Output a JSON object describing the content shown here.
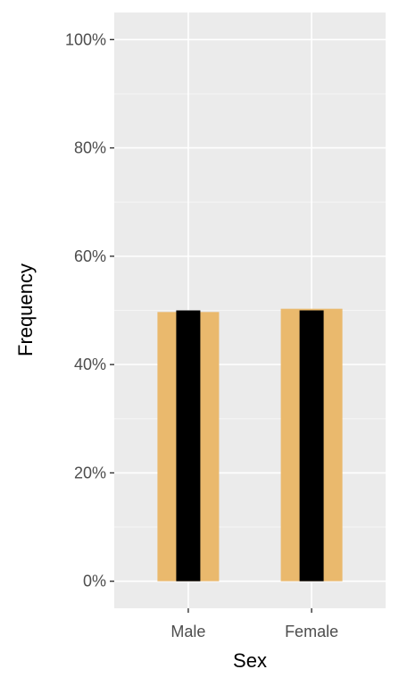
{
  "chart_data": {
    "type": "bar",
    "title": "",
    "xlabel": "Sex",
    "ylabel": "Frequency",
    "categories": [
      "Male",
      "Female"
    ],
    "series": [
      {
        "values": [
          0.497,
          0.503
        ]
      },
      {
        "values": [
          0.5,
          0.5
        ]
      }
    ],
    "ylim": [
      -0.05,
      1.05
    ],
    "y_ticks": [
      0,
      0.2,
      0.4,
      0.6,
      0.8,
      1.0
    ],
    "y_tick_labels": [
      "0%",
      "20%",
      "40%",
      "60%",
      "80%",
      "100%"
    ],
    "grid": true,
    "legend": "none",
    "colors": {
      "panel_background": "#ebebeb",
      "grid_major": "#ffffff",
      "grid_minor": "#f5f5f5",
      "wide_bar": "#eab96d",
      "narrow_bar": "#000000"
    }
  }
}
